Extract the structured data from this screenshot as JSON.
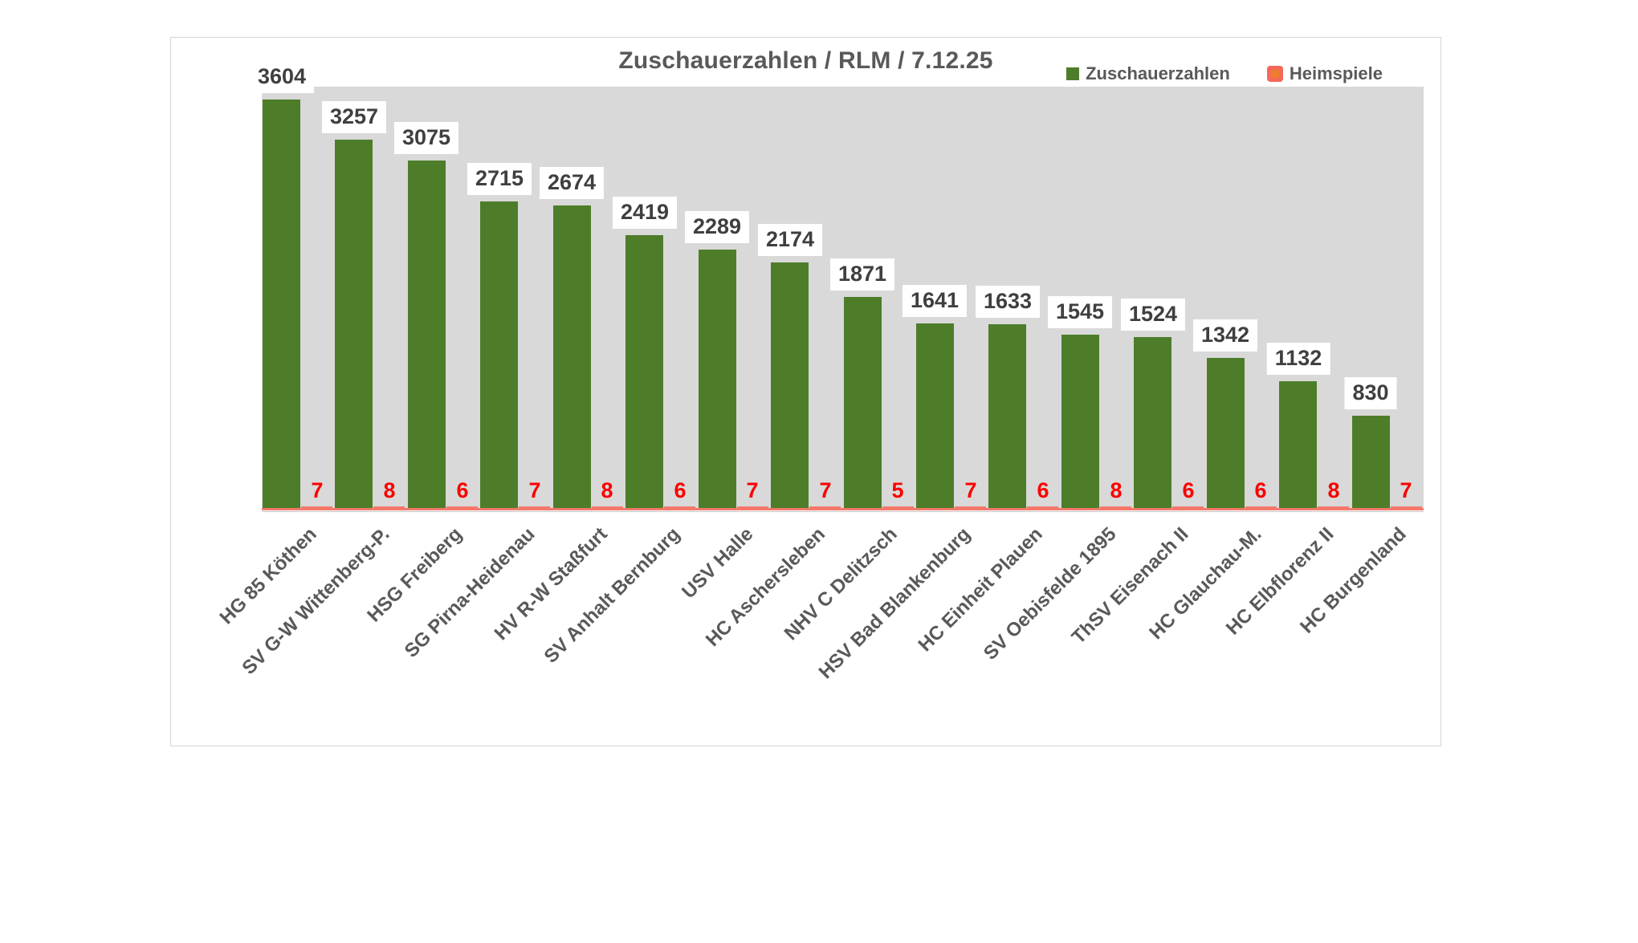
{
  "chart_data": {
    "type": "bar",
    "title": "Zuschauerzahlen / RLM / 7.12.25",
    "categories": [
      "HG 85 Köthen",
      "SV G-W Wittenberg-P.",
      "HSG Freiberg",
      "SG Pirna-Heidenau",
      "HV R-W Staßfurt",
      "SV Anhalt Bernburg",
      "USV Halle",
      "HC Aschersleben",
      "NHV C Delitzsch",
      "HSV Bad Blankenburg",
      "HC Einheit Plauen",
      "SV Oebisfelde 1895",
      "ThSV Eisenach II",
      "HC Glauchau-M.",
      "HC Elbflorenz II",
      "HC Burgenland"
    ],
    "series": [
      {
        "name": "Zuschauerzahlen",
        "values": [
          3604,
          3257,
          3075,
          2715,
          2674,
          2419,
          2289,
          2174,
          1871,
          1641,
          1633,
          1545,
          1524,
          1342,
          1132,
          830
        ],
        "color": "#4e7d2a"
      },
      {
        "name": "Heimspiele",
        "values": [
          7,
          8,
          6,
          7,
          8,
          6,
          7,
          7,
          5,
          7,
          6,
          8,
          6,
          6,
          8,
          7
        ],
        "color": "#f4796b",
        "label_color": "#fa0000"
      }
    ],
    "xlabel": "",
    "ylabel": "",
    "ylim": [
      0,
      3720
    ],
    "grid": false,
    "legend_position": "top-right",
    "plot_background": "#d9d9d9",
    "colors": {
      "green": "#4e7d2a",
      "salmon": "#f4796b",
      "salmon_marker": "#f4695a",
      "orange": "#ee7d2f",
      "title_gray": "#595959"
    }
  }
}
